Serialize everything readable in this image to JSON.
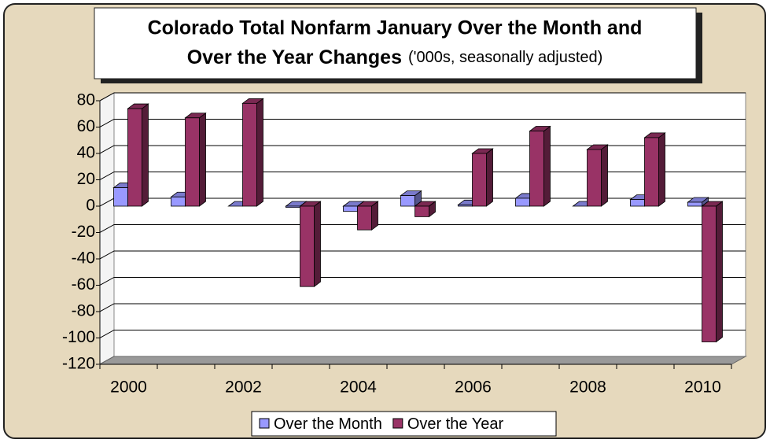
{
  "chart_data": {
    "type": "bar",
    "title": "Colorado Total Nonfarm January Over the Month and",
    "subtitle_bold": "Over the Year Changes",
    "subtitle": "('000s, seasonally adjusted)",
    "categories": [
      "2000",
      null,
      "2002",
      null,
      "2004",
      null,
      "2006",
      null,
      "2008",
      null,
      "2010"
    ],
    "series": [
      {
        "name": "Over the Month",
        "color": "#9999ff",
        "values": [
          14,
          7,
          0,
          -1,
          -4,
          8,
          1,
          6,
          0,
          5,
          3
        ]
      },
      {
        "name": "Over the Year",
        "color": "#993366",
        "values": [
          74,
          67,
          78,
          -61,
          -18,
          -8,
          40,
          57,
          43,
          52,
          -103
        ]
      }
    ],
    "ylim": [
      -120,
      80
    ],
    "yticks": [
      -120,
      -100,
      -80,
      -60,
      -40,
      -20,
      0,
      20,
      40,
      60,
      80
    ],
    "grid": true,
    "legend": "bottom"
  }
}
